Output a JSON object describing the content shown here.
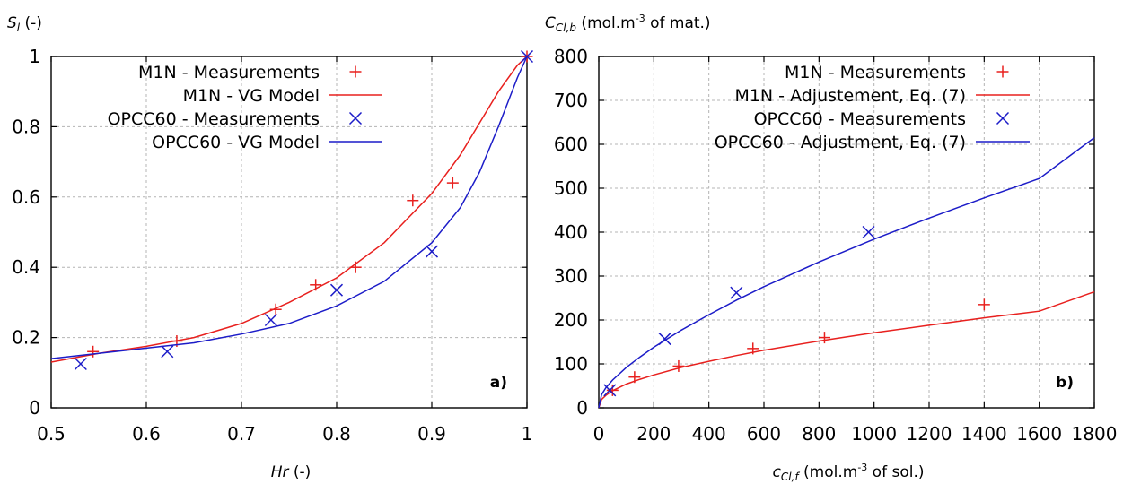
{
  "chart_data": [
    {
      "type": "scatter",
      "panel_label": "a)",
      "ylabel": "Sl (-)",
      "ylabel_main": "S",
      "ylabel_sub": "l",
      "ylabel_suffix": " (-)",
      "xlabel": "Hr (-)",
      "xlabel_main": "Hr",
      "xlabel_suffix": " (-)",
      "xlim": [
        0.5,
        1.0
      ],
      "ylim": [
        0,
        1.0
      ],
      "x_ticks": [
        0.5,
        0.6,
        0.7,
        0.8,
        0.9,
        1.0
      ],
      "x_tick_labels": [
        "0.5",
        "0.6",
        "0.7",
        "0.8",
        "0.9",
        "1"
      ],
      "y_ticks": [
        0,
        0.2,
        0.4,
        0.6,
        0.8,
        1.0
      ],
      "y_tick_labels": [
        "0",
        "0.2",
        "0.4",
        "0.6",
        "0.8",
        "1"
      ],
      "grid": true,
      "legend_position": "top-left",
      "series": [
        {
          "name": "M1N - Measurements",
          "kind": "points",
          "marker": "plus",
          "color": "#e8201e",
          "x": [
            0.544,
            0.632,
            0.736,
            0.778,
            0.82,
            0.88,
            0.922,
            1.0
          ],
          "y": [
            0.16,
            0.19,
            0.28,
            0.35,
            0.4,
            0.59,
            0.64,
            1.0
          ]
        },
        {
          "name": "M1N - VG Model",
          "kind": "line",
          "color": "#e8201e",
          "x": [
            0.5,
            0.55,
            0.6,
            0.65,
            0.7,
            0.75,
            0.8,
            0.85,
            0.9,
            0.93,
            0.95,
            0.97,
            0.99,
            1.0
          ],
          "y": [
            0.13,
            0.155,
            0.175,
            0.2,
            0.24,
            0.3,
            0.37,
            0.47,
            0.61,
            0.72,
            0.81,
            0.9,
            0.975,
            1.0
          ]
        },
        {
          "name": "OPCC60 - Measurements",
          "kind": "points",
          "marker": "cross",
          "color": "#1c1cc8",
          "x": [
            0.531,
            0.622,
            0.731,
            0.8,
            0.9,
            1.0
          ],
          "y": [
            0.125,
            0.16,
            0.25,
            0.335,
            0.445,
            1.0
          ]
        },
        {
          "name": "OPCC60 - VG Model",
          "kind": "line",
          "color": "#1c1cc8",
          "x": [
            0.5,
            0.55,
            0.6,
            0.65,
            0.7,
            0.75,
            0.8,
            0.85,
            0.9,
            0.93,
            0.95,
            0.97,
            0.98,
            0.99,
            1.0
          ],
          "y": [
            0.14,
            0.155,
            0.17,
            0.185,
            0.21,
            0.24,
            0.29,
            0.36,
            0.47,
            0.57,
            0.67,
            0.8,
            0.87,
            0.94,
            1.0
          ]
        }
      ]
    },
    {
      "type": "scatter",
      "panel_label": "b)",
      "ylabel": "CCl,b (mol.m-3 of mat.)",
      "ylabel_main": "C",
      "ylabel_sub": "Cl,b",
      "ylabel_pre": " (mol.m",
      "ylabel_sup": "-3",
      "ylabel_post": " of mat.)",
      "xlabel": "cCl,f (mol.m-3 of sol.)",
      "xlabel_main": "c",
      "xlabel_sub": "Cl,f",
      "xlabel_pre": " (mol.m",
      "xlabel_sup": "-3",
      "xlabel_post": " of sol.)",
      "xlim": [
        0,
        1800
      ],
      "ylim": [
        0,
        800
      ],
      "x_ticks": [
        0,
        200,
        400,
        600,
        800,
        1000,
        1200,
        1400,
        1600,
        1800
      ],
      "x_tick_labels": [
        "0",
        "200",
        "400",
        "600",
        "800",
        "1000",
        "1200",
        "1400",
        "1600",
        "1800"
      ],
      "y_ticks": [
        0,
        100,
        200,
        300,
        400,
        500,
        600,
        700,
        800
      ],
      "y_tick_labels": [
        "0",
        "100",
        "200",
        "300",
        "400",
        "500",
        "600",
        "700",
        "800"
      ],
      "grid": true,
      "legend_position": "top-right",
      "series": [
        {
          "name": "M1N - Measurements",
          "kind": "points",
          "marker": "plus",
          "color": "#e8201e",
          "x": [
            50,
            130,
            290,
            560,
            820,
            1400
          ],
          "y": [
            40,
            70,
            95,
            135,
            160,
            235
          ]
        },
        {
          "name": "M1N - Adjustement, Eq. (7)",
          "kind": "line",
          "color": "#e8201e",
          "x": [
            0,
            10,
            25,
            50,
            100,
            150,
            200,
            300,
            400,
            500,
            600,
            800,
            1000,
            1200,
            1400,
            1600,
            1800
          ],
          "y": [
            0,
            19,
            28,
            39,
            54,
            65,
            75,
            92,
            106,
            119,
            131,
            152,
            171,
            188,
            205,
            220,
            264
          ]
        },
        {
          "name": "OPCC60 - Measurements",
          "kind": "points",
          "marker": "cross",
          "color": "#1c1cc8",
          "x": [
            40,
            240,
            500,
            980
          ],
          "y": [
            40,
            157,
            262,
            400
          ]
        },
        {
          "name": "OPCC60 - Adjustment, Eq. (7)",
          "kind": "line",
          "color": "#1c1cc8",
          "x": [
            0,
            10,
            25,
            50,
            100,
            150,
            200,
            300,
            400,
            500,
            600,
            800,
            1000,
            1200,
            1400,
            1600,
            1800
          ],
          "y": [
            0,
            30,
            45,
            63,
            92,
            116,
            138,
            177,
            212,
            245,
            276,
            332,
            384,
            432,
            478,
            522,
            615
          ]
        }
      ]
    }
  ]
}
